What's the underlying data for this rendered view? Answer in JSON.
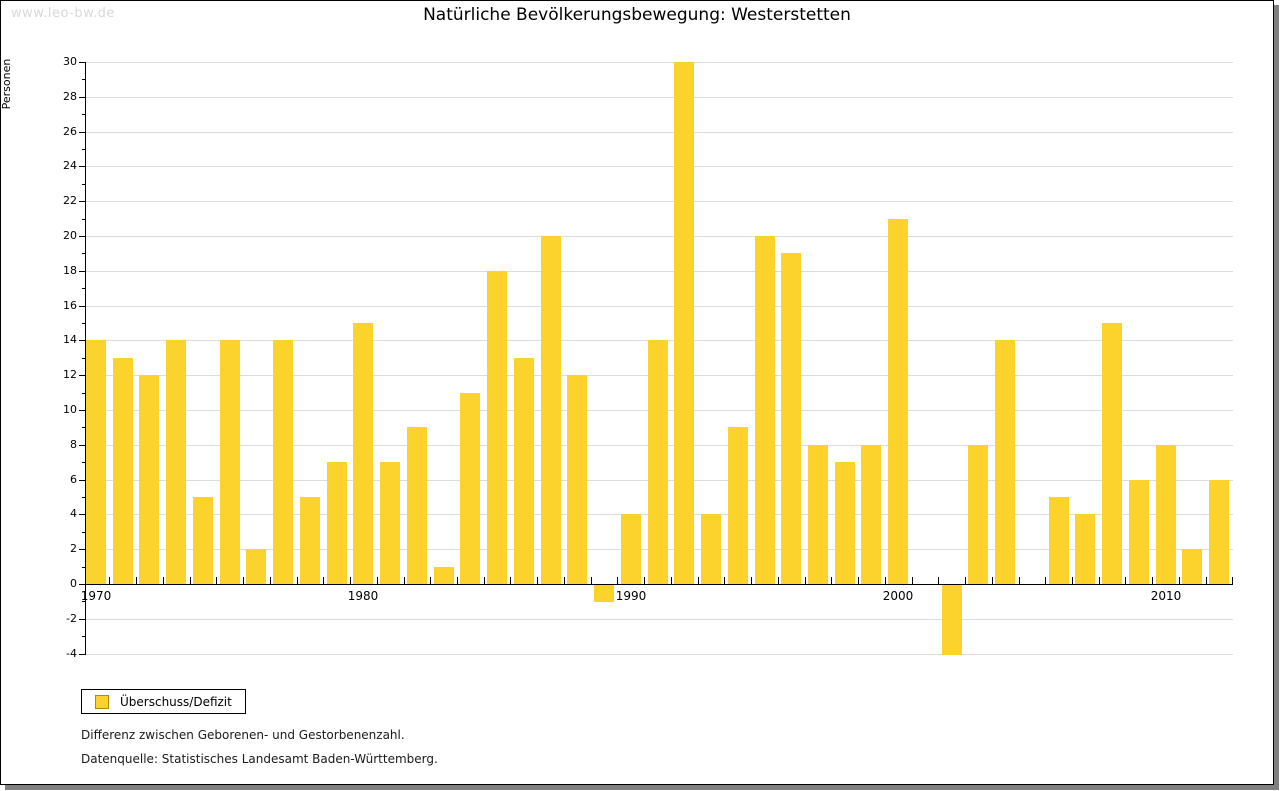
{
  "watermark": "www.leo-bw.de",
  "title": "Natürliche Bevölkerungsbewegung: Westerstetten",
  "legend": {
    "label": "Überschuss/Defizit",
    "swatch_color": "#fcd32c",
    "swatch_border_color": "#b8860b"
  },
  "footnotes": [
    "Differenz zwischen Geborenen- und Gestorbenenzahl.",
    "Datenquelle: Statistisches Landesamt Baden-Württemberg."
  ],
  "colors": {
    "bar": "#fcd32c",
    "gridline": "#dcdcdc",
    "axis": "#000000",
    "watermark": "#d8d8d8",
    "page_shadow": "#808080"
  },
  "chart_data": {
    "type": "bar",
    "title": "Natürliche Bevölkerungsbewegung: Westerstetten",
    "xlabel": "",
    "ylabel": "Personen",
    "series_name": "Überschuss/Defizit",
    "x": [
      1970,
      1971,
      1972,
      1973,
      1974,
      1975,
      1976,
      1977,
      1978,
      1979,
      1980,
      1981,
      1982,
      1983,
      1984,
      1985,
      1986,
      1987,
      1988,
      1989,
      1990,
      1991,
      1992,
      1993,
      1994,
      1995,
      1996,
      1997,
      1998,
      1999,
      2000,
      2001,
      2002,
      2003,
      2004,
      2005,
      2006,
      2007,
      2008,
      2009,
      2010,
      2011,
      2012
    ],
    "values": [
      14,
      13,
      12,
      14,
      5,
      14,
      2,
      14,
      5,
      7,
      15,
      7,
      9,
      1,
      11,
      18,
      13,
      20,
      12,
      -1,
      4,
      14,
      30,
      4,
      9,
      20,
      19,
      8,
      7,
      8,
      21,
      0,
      -4,
      8,
      14,
      0,
      5,
      4,
      15,
      6,
      8,
      2,
      6
    ],
    "ylim": [
      -4,
      30
    ],
    "yticks": [
      -4,
      -2,
      0,
      2,
      4,
      6,
      8,
      10,
      12,
      14,
      16,
      18,
      20,
      22,
      24,
      26,
      28,
      30
    ],
    "xticks": [
      1970,
      1980,
      1990,
      2000,
      2010
    ],
    "grid": true,
    "legend_position": "bottom-left"
  }
}
